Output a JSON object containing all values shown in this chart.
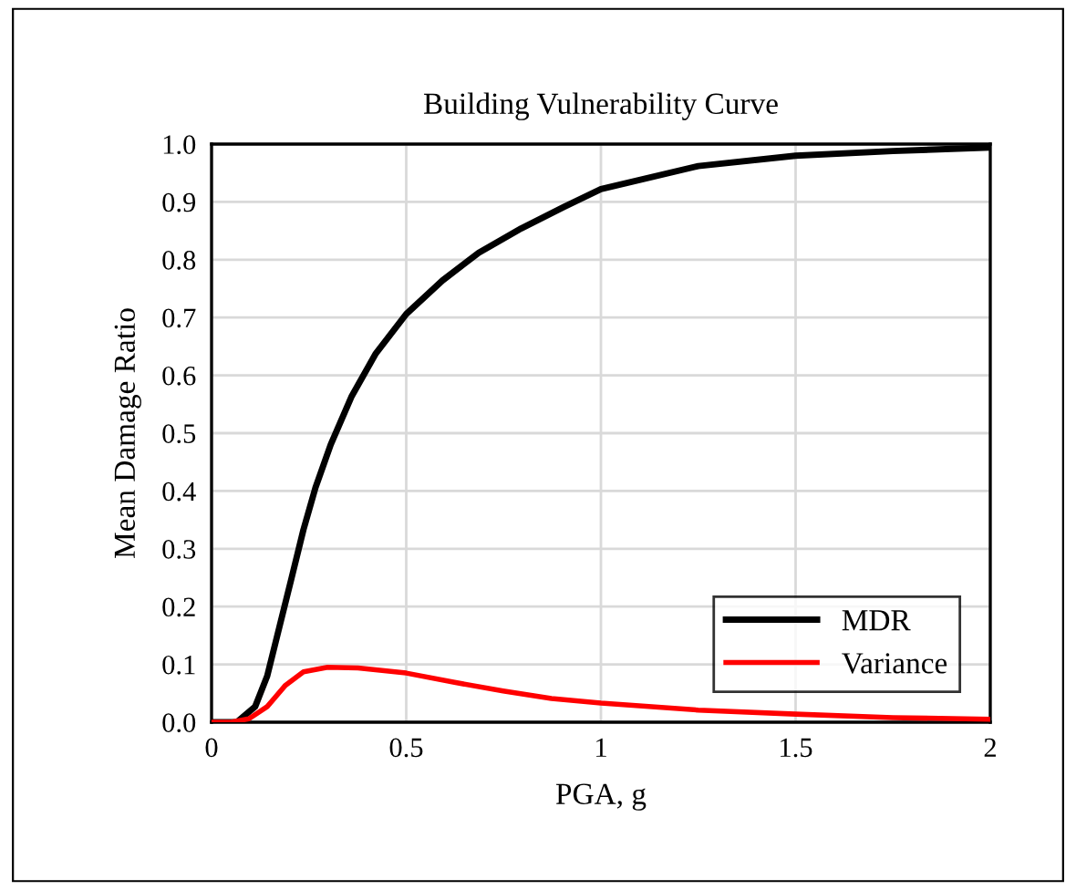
{
  "chart_data": {
    "type": "line",
    "title": "Building Vulnerability Curve",
    "xlabel": "PGA, g",
    "ylabel": "Mean Damage Ratio",
    "xlim": [
      0,
      2
    ],
    "ylim": [
      0,
      1
    ],
    "xticks": [
      0,
      0.5,
      1,
      1.5,
      2
    ],
    "yticks": [
      {
        "value": 0,
        "label": "0.0"
      },
      {
        "value": 0.1,
        "label": "0.1"
      },
      {
        "value": 0.2,
        "label": "0.2"
      },
      {
        "value": 0.3,
        "label": "0.3"
      },
      {
        "value": 0.4,
        "label": "0.4"
      },
      {
        "value": 0.5,
        "label": "0.5"
      },
      {
        "value": 0.6,
        "label": "0.6"
      },
      {
        "value": 0.7,
        "label": "0.7"
      },
      {
        "value": 0.8,
        "label": "0.8"
      },
      {
        "value": 0.9,
        "label": "0.9"
      },
      {
        "value": 1,
        "label": "1.0"
      }
    ],
    "grid": true,
    "legend": "bottom right",
    "marker": "none",
    "line_style": "solid",
    "series": [
      {
        "name": "MDR",
        "color": "#000000",
        "x": [
          0,
          0.065,
          0.112,
          0.143,
          0.174,
          0.205,
          0.236,
          0.267,
          0.306,
          0.36,
          0.422,
          0.5,
          0.593,
          0.686,
          0.795,
          0.904,
          1.0,
          1.25,
          1.5,
          1.75,
          2.0
        ],
        "values": [
          0,
          0,
          0.027,
          0.08,
          0.164,
          0.248,
          0.333,
          0.406,
          0.48,
          0.564,
          0.638,
          0.706,
          0.764,
          0.812,
          0.854,
          0.891,
          0.922,
          0.962,
          0.98,
          0.988,
          0.994
        ]
      },
      {
        "name": "Variance",
        "color": "#ff0000",
        "x": [
          0,
          0.05,
          0.096,
          0.143,
          0.19,
          0.236,
          0.298,
          0.376,
          0.5,
          0.624,
          0.749,
          0.873,
          1.0,
          1.25,
          1.5,
          1.75,
          2.0
        ],
        "values": [
          0,
          0,
          0.006,
          0.027,
          0.064,
          0.087,
          0.095,
          0.094,
          0.085,
          0.069,
          0.054,
          0.041,
          0.033,
          0.021,
          0.014,
          0.008,
          0.005
        ]
      }
    ]
  }
}
